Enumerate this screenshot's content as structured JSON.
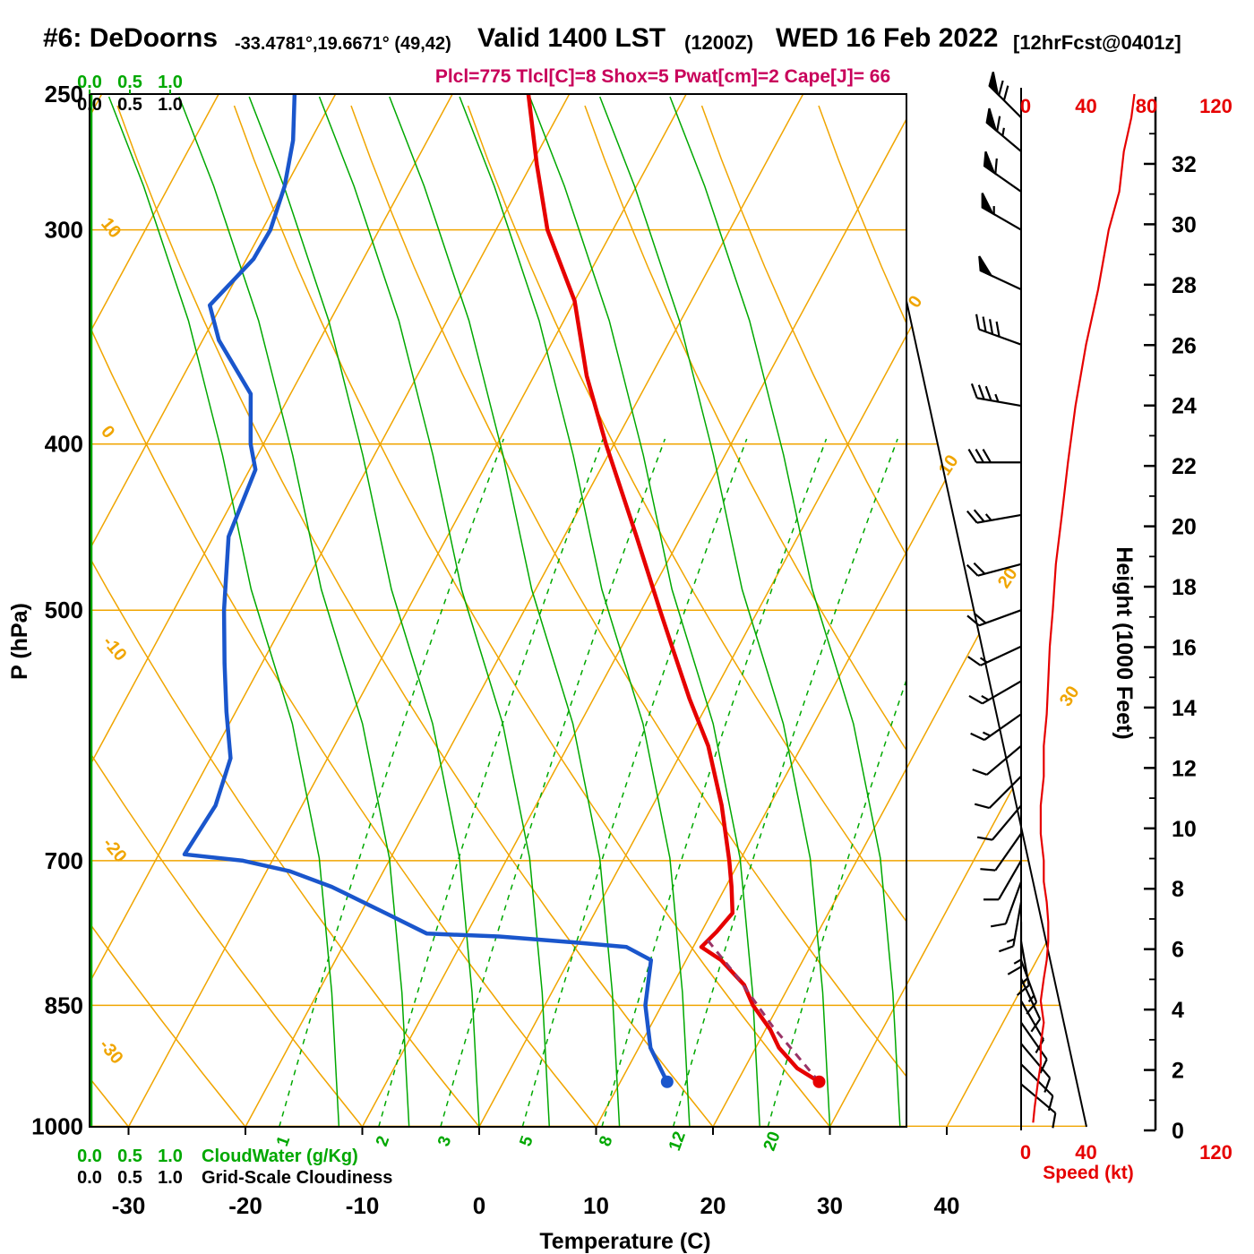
{
  "title": {
    "station": "#6: DeDoorns",
    "coords": "-33.4781°,19.6671° (49,42)",
    "valid": "Valid 1400 LST",
    "zulu": "(1200Z)",
    "date": "WED 16 Feb 2022",
    "fcst": "[12hrFcst@0401z]"
  },
  "params_line": "Plcl=775 Tlcl[C]=8 Shox=5 Pwat[cm]=2 Cape[J]= 66",
  "axes": {
    "pressure": {
      "label": "P (hPa)",
      "ticks": [
        250,
        300,
        400,
        500,
        700,
        850,
        1000
      ]
    },
    "temperature": {
      "label": "Temperature (C)",
      "ticks": [
        -30,
        -20,
        -10,
        0,
        10,
        20,
        30,
        40
      ]
    },
    "height": {
      "label": "Height (1000 Feet)",
      "ticks": [
        0,
        2,
        4,
        6,
        8,
        10,
        12,
        14,
        16,
        18,
        20,
        22,
        24,
        26,
        28,
        30,
        32
      ]
    },
    "speed": {
      "label": "Speed (kt)",
      "ticks_top": [
        0,
        40,
        80,
        120
      ],
      "ticks_bottom": [
        0,
        40,
        120
      ]
    },
    "cloudwater": {
      "label": "CloudWater (g/Kg)",
      "ticks": [
        "0.0",
        "0.5",
        "1.0"
      ]
    },
    "cloudiness": {
      "label": "Grid-Scale Cloudiness",
      "ticks": [
        "0.0",
        "0.5",
        "1.0"
      ]
    }
  },
  "grid_labels": {
    "dry_adiabat_left": [
      "10",
      "0",
      "-10",
      "-20",
      "-30"
    ],
    "isotherm_right": [
      "0",
      "10",
      "20",
      "30"
    ],
    "mixing_ratio": [
      "1",
      "2",
      "3",
      "5",
      "8",
      "12",
      "20"
    ]
  },
  "colors": {
    "grid_orange": "#f0a500",
    "grid_green": "#00a800",
    "temperature_curve": "#e60000",
    "dewpoint_curve": "#1a56cc",
    "parcel_path": "#993366",
    "speed_curve": "#e60000",
    "params_text": "#c8005a"
  },
  "chart_data": {
    "type": "line",
    "subtype": "skewt-logp-sounding",
    "pressure_range_hPa": [
      1000,
      250
    ],
    "temperature_range_C": [
      -30,
      40
    ],
    "parcel_params": {
      "Plcl_hPa": 775,
      "Tlcl_C": 8,
      "Shox": 5,
      "Pwat_cm": 2,
      "Cape_J": 66
    },
    "surface": {
      "pressure_hPa": 942,
      "temp_C": 27.0,
      "dewpoint_C": 14.0
    },
    "temperature_profile": {
      "pressure_hPa": [
        942,
        925,
        900,
        878,
        850,
        827,
        800,
        786,
        770,
        751,
        725,
        700,
        650,
        600,
        563,
        524,
        500,
        453,
        400,
        365,
        330,
        300,
        275,
        250
      ],
      "temp_C": [
        27,
        24.5,
        22,
        20.4,
        17.8,
        16.1,
        13,
        10.7,
        11.3,
        11.8,
        10.5,
        9.1,
        5.9,
        2,
        -1.8,
        -5.8,
        -8.4,
        -13.8,
        -20.7,
        -25.5,
        -30,
        -35.6,
        -39.5,
        -43.5
      ]
    },
    "dewpoint_profile": {
      "pressure_hPa": [
        942,
        925,
        900,
        850,
        800,
        786,
        781,
        775,
        772,
        751,
        725,
        710,
        700,
        694,
        650,
        610,
        573,
        537,
        500,
        453,
        414,
        400,
        374,
        348,
        332,
        312,
        300,
        283,
        266,
        250
      ],
      "dewpoint_C": [
        14,
        12.8,
        11,
        8.6,
        7,
        4.3,
        -0.6,
        -7.1,
        -13.4,
        -17.9,
        -23.7,
        -28,
        -32.5,
        -37.8,
        -37.4,
        -38.3,
        -40.8,
        -43.2,
        -45.7,
        -48.7,
        -49.5,
        -51.1,
        -53.4,
        -58.6,
        -61,
        -59.4,
        -59.3,
        -60.1,
        -61.5,
        -63.5
      ]
    },
    "wind_speed_profile": {
      "pressure_hPa": [
        995,
        975,
        945,
        920,
        895,
        870,
        845,
        820,
        800,
        780,
        760,
        740,
        720,
        700,
        675,
        650,
        625,
        600,
        575,
        550,
        525,
        500,
        470,
        440,
        410,
        380,
        350,
        325,
        300,
        285,
        270,
        258,
        250
      ],
      "speed_kt": [
        5,
        6,
        8,
        10,
        10,
        12,
        10,
        12,
        14,
        15,
        15,
        14,
        12,
        12,
        10,
        10,
        12,
        12,
        14,
        15,
        16,
        18,
        20,
        24,
        28,
        33,
        40,
        48,
        55,
        62,
        65,
        70,
        72
      ]
    },
    "wind_barbs": {
      "pressure_hPa": [
        945,
        920,
        895,
        870,
        845,
        820,
        800,
        780,
        760,
        740,
        720,
        700,
        675,
        650,
        625,
        600,
        575,
        550,
        525,
        500,
        470,
        440,
        410,
        380,
        350,
        325,
        300,
        285,
        270,
        258
      ],
      "dir_deg": [
        130,
        135,
        140,
        145,
        150,
        155,
        160,
        170,
        180,
        190,
        200,
        210,
        215,
        220,
        225,
        230,
        235,
        240,
        245,
        250,
        255,
        260,
        270,
        280,
        290,
        295,
        300,
        305,
        310,
        315
      ],
      "speed_kt": [
        8,
        10,
        10,
        12,
        10,
        12,
        14,
        15,
        15,
        14,
        12,
        12,
        10,
        10,
        12,
        12,
        14,
        15,
        16,
        18,
        20,
        24,
        28,
        33,
        40,
        48,
        55,
        62,
        65,
        70
      ]
    },
    "mixing_ratio_lines_gkg": [
      1,
      2,
      3,
      5,
      8,
      12,
      20
    ],
    "pressure_gridlines_hPa": [
      300,
      400,
      500,
      700,
      850,
      1000
    ]
  }
}
